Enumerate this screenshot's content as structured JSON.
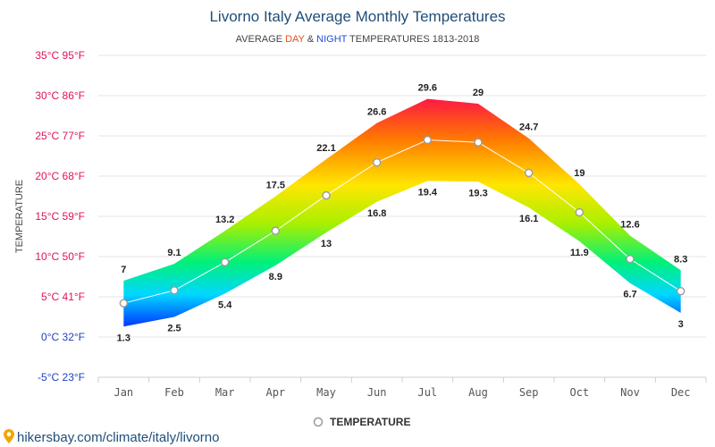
{
  "chart_data": {
    "type": "area",
    "title": "Livorno Italy Average Monthly Temperatures",
    "subtitle": {
      "prefix": "AVERAGE ",
      "day": "DAY",
      "mid": " & ",
      "night": "NIGHT",
      "suffix": " TEMPERATURES 1813-2018"
    },
    "ylabel": "TEMPERATURE",
    "categories": [
      "Jan",
      "Feb",
      "Mar",
      "Apr",
      "May",
      "Jun",
      "Jul",
      "Aug",
      "Sep",
      "Oct",
      "Nov",
      "Dec"
    ],
    "series": [
      {
        "values": [
          7,
          9.1,
          13.2,
          17.5,
          22.1,
          26.6,
          29.6,
          29,
          24.7,
          19,
          12.6,
          8.3
        ]
      },
      {
        "values": [
          1.3,
          2.5,
          5.4,
          8.9,
          13,
          16.8,
          19.4,
          19.3,
          16.1,
          11.9,
          6.7,
          3
        ]
      },
      {
        "name": "TEMPERATURE",
        "values": [
          4.2,
          5.8,
          9.3,
          13.2,
          17.6,
          21.7,
          24.5,
          24.2,
          20.4,
          15.5,
          9.7,
          5.7
        ]
      }
    ],
    "day_labels": [
      "7",
      "9.1",
      "13.2",
      "17.5",
      "22.1",
      "26.6",
      "29.6",
      "29",
      "24.7",
      "19",
      "12.6",
      "8.3"
    ],
    "night_labels": [
      "1.3",
      "2.5",
      "5.4",
      "8.9",
      "13",
      "16.8",
      "19.4",
      "19.3",
      "16.1",
      "11.9",
      "6.7",
      "3"
    ],
    "ylim": [
      -5,
      35
    ],
    "yticks": [
      {
        "value": 35,
        "label": "35°C 95°F"
      },
      {
        "value": 30,
        "label": "30°C 86°F"
      },
      {
        "value": 25,
        "label": "25°C 77°F"
      },
      {
        "value": 20,
        "label": "20°C 68°F"
      },
      {
        "value": 15,
        "label": "15°C 59°F"
      },
      {
        "value": 10,
        "label": "10°C 50°F"
      },
      {
        "value": 5,
        "label": "5°C 41°F"
      },
      {
        "value": 0,
        "label": "0°C 32°F"
      },
      {
        "value": -5,
        "label": "-5°C 23°F"
      }
    ],
    "grid": true,
    "legend": "bottom-center"
  },
  "source": "hikersbay.com/climate/italy/livorno",
  "colors": {
    "title": "#1f4e79",
    "day": "#e8501e",
    "night": "#1f4fd0",
    "warm_tick": "#e0115f",
    "cold_tick": "#1f3fbf",
    "grid": "#e6e6e6"
  }
}
